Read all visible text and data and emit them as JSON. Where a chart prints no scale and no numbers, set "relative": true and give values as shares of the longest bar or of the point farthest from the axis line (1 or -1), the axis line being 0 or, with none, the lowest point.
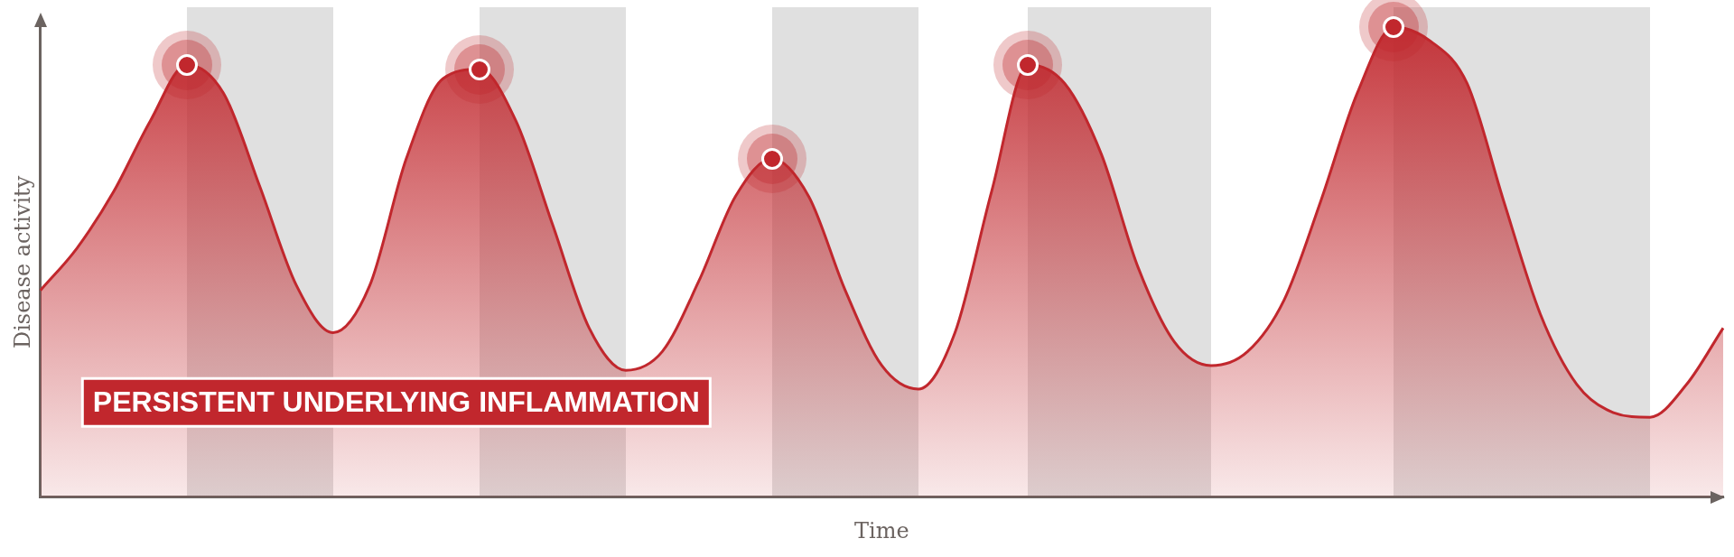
{
  "chart_data": {
    "type": "area",
    "xlabel": "Time",
    "ylabel": "Disease activity",
    "relative": true,
    "color": "#c1272d",
    "annotations": [
      "PERSISTENT UNDERLYING INFLAMMATION"
    ],
    "categories": [
      null,
      null,
      null,
      null,
      null,
      null,
      null,
      null,
      null,
      null,
      null,
      null,
      null,
      null,
      null,
      null,
      null,
      null,
      null,
      null,
      null,
      null,
      null,
      null,
      null,
      null,
      null,
      null,
      null,
      null,
      null,
      null,
      null,
      null,
      null,
      null,
      null,
      null,
      null,
      null,
      null,
      null,
      null,
      null,
      null,
      null,
      null
    ],
    "values": [
      0.44,
      0.53,
      0.65,
      0.8,
      0.92,
      0.86,
      0.66,
      0.45,
      0.35,
      0.45,
      0.72,
      0.89,
      0.91,
      0.8,
      0.58,
      0.36,
      0.27,
      0.31,
      0.46,
      0.64,
      0.72,
      0.64,
      0.44,
      0.28,
      0.23,
      0.35,
      0.65,
      0.92,
      0.88,
      0.73,
      0.49,
      0.33,
      0.28,
      0.31,
      0.42,
      0.63,
      0.86,
      1,
      0.97,
      0.88,
      0.63,
      0.39,
      0.24,
      0.18,
      0.17,
      0.24,
      0.36
    ]
  }
}
